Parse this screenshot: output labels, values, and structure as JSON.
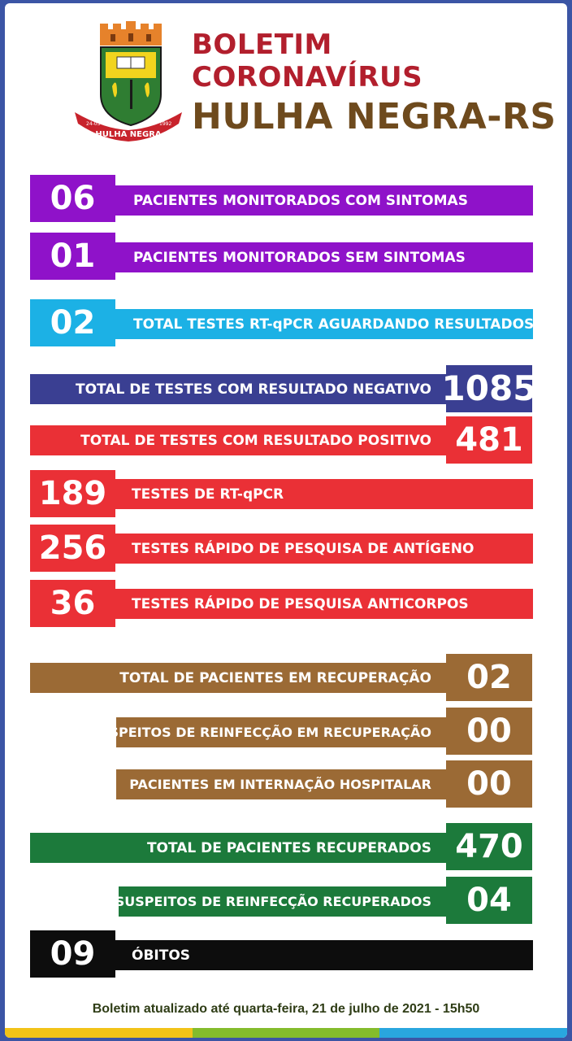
{
  "header": {
    "line1": "BOLETIM",
    "line2": "CORONAVÍRUS",
    "line3": "HULHA NEGRA-RS",
    "crest": {
      "ribbon_text": "HULHA NEGRA",
      "year_left": "24-03",
      "year_right": "1992"
    }
  },
  "rows": [
    {
      "value": "06",
      "label": "PACIENTES MONITORADOS COM SINTOMAS"
    },
    {
      "value": "01",
      "label": "PACIENTES MONITORADOS SEM SINTOMAS"
    },
    {
      "value": "02",
      "label": "TOTAL TESTES RT-qPCR AGUARDANDO RESULTADOS"
    },
    {
      "value": "1085",
      "label": "TOTAL DE TESTES COM RESULTADO NEGATIVO"
    },
    {
      "value": "481",
      "label": "TOTAL DE TESTES COM RESULTADO POSITIVO"
    },
    {
      "value": "189",
      "label": "TESTES DE RT-qPCR"
    },
    {
      "value": "256",
      "label": "TESTES RÁPIDO DE PESQUISA DE ANTÍGENO"
    },
    {
      "value": "36",
      "label": "TESTES RÁPIDO DE PESQUISA ANTICORPOS"
    },
    {
      "value": "02",
      "label": "TOTAL DE PACIENTES EM RECUPERAÇÃO"
    },
    {
      "value": "00",
      "label": "SUSPEITOS DE REINFECÇÃO EM RECUPERAÇÃO"
    },
    {
      "value": "00",
      "label": "PACIENTES EM INTERNAÇÃO HOSPITALAR"
    },
    {
      "value": "470",
      "label": "TOTAL DE PACIENTES RECUPERADOS"
    },
    {
      "value": "04",
      "label": "SUSPEITOS DE REINFECÇÃO RECUPERADOS"
    },
    {
      "value": "09",
      "label": "ÓBITOS"
    }
  ],
  "footer": {
    "text": "Boletim atualizado até quarta-feira, 21 de julho de 2021 - 15h50"
  },
  "colors": {
    "purple": "#8f12c9",
    "cyan": "#1cb1e5",
    "navy": "#3a3f92",
    "red": "#ea3036",
    "brown": "#9b6a35",
    "green": "#1c7a3b",
    "black": "#0d0d0d",
    "title_red": "#b21f2d",
    "title_brown": "#6e4a1d",
    "stripe": [
      "#f2c318",
      "#84bc2c",
      "#29a6de"
    ]
  }
}
